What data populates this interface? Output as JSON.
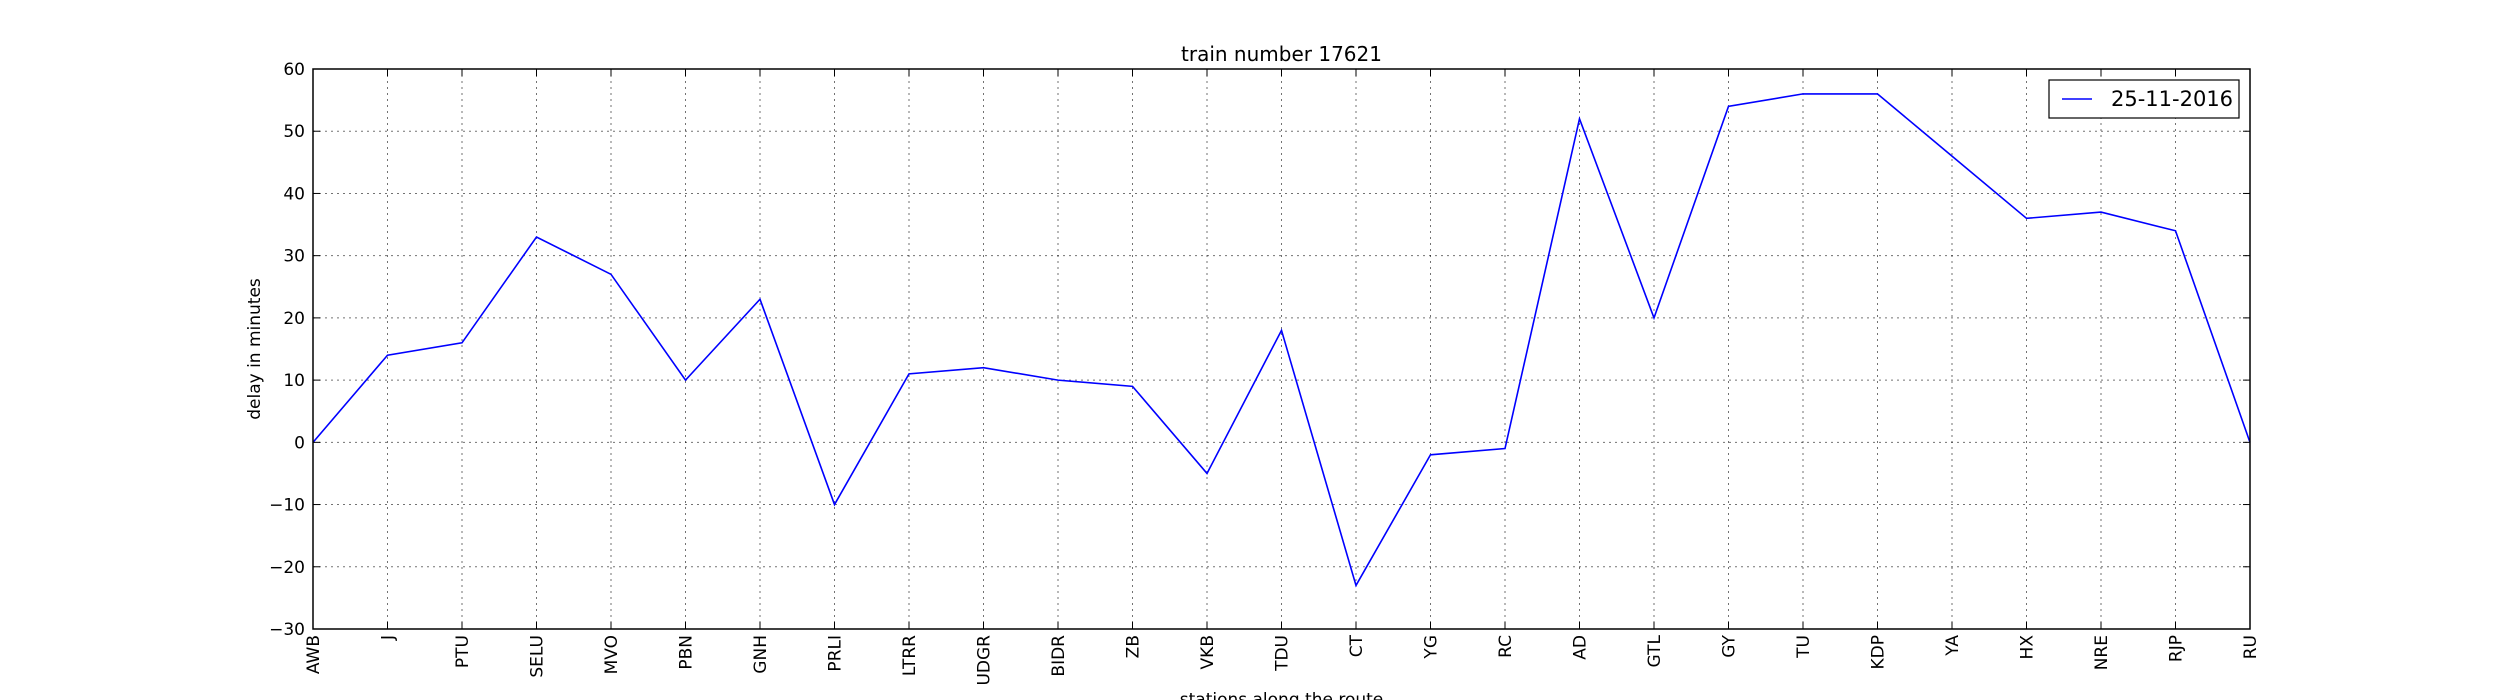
{
  "chart_data": {
    "type": "line",
    "title": "train number 17621",
    "xlabel": "stations along the route",
    "ylabel": "delay in minutes",
    "categories": [
      "AWB",
      "J",
      "PTU",
      "SELU",
      "MVO",
      "PBN",
      "GNH",
      "PRLI",
      "LTRR",
      "UDGR",
      "BIDR",
      "ZB",
      "VKB",
      "TDU",
      "CT",
      "YG",
      "RC",
      "AD",
      "GTL",
      "GY",
      "TU",
      "KDP",
      "YA",
      "HX",
      "NRE",
      "RJP",
      "RU"
    ],
    "series": [
      {
        "name": "25-11-2016",
        "color": "#0000ff",
        "values": [
          0,
          14,
          16,
          33,
          27,
          10,
          23,
          -10,
          11,
          12,
          10,
          9,
          -5,
          18,
          -23,
          -2,
          -1,
          52,
          20,
          54,
          56,
          56,
          46,
          36,
          37,
          34,
          0
        ]
      }
    ],
    "ylim": [
      -30,
      60
    ],
    "yticks": [
      -30,
      -20,
      -10,
      0,
      10,
      20,
      30,
      40,
      50,
      60
    ],
    "ytick_labels": [
      "−30",
      "−20",
      "−10",
      "0",
      "10",
      "20",
      "30",
      "40",
      "50",
      "60"
    ],
    "grid": true,
    "legend_position": "upper right"
  }
}
